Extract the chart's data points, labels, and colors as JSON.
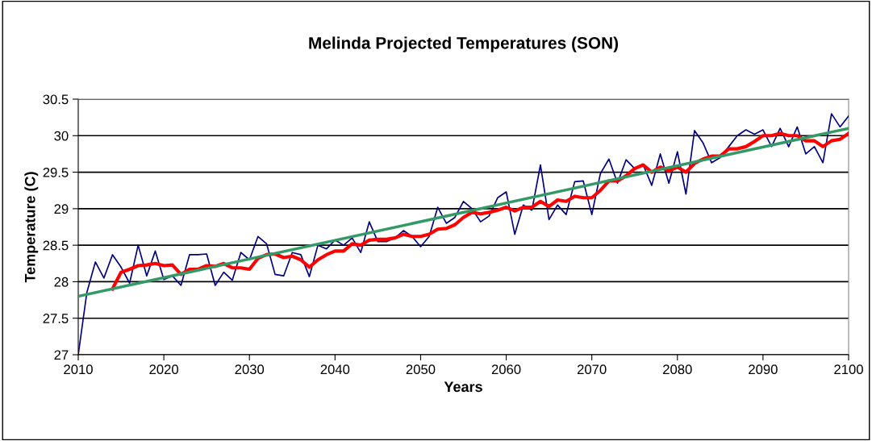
{
  "chart_data": {
    "type": "line",
    "title": "Melinda Projected Temperatures (SON)",
    "xlabel": "Years",
    "ylabel": "Temperature (C)",
    "x": [
      2010,
      2011,
      2012,
      2013,
      2014,
      2015,
      2016,
      2017,
      2018,
      2019,
      2020,
      2021,
      2022,
      2023,
      2024,
      2025,
      2026,
      2027,
      2028,
      2029,
      2030,
      2031,
      2032,
      2033,
      2034,
      2035,
      2036,
      2037,
      2038,
      2039,
      2040,
      2041,
      2042,
      2043,
      2044,
      2045,
      2046,
      2047,
      2048,
      2049,
      2050,
      2051,
      2052,
      2053,
      2054,
      2055,
      2056,
      2057,
      2058,
      2059,
      2060,
      2061,
      2062,
      2063,
      2064,
      2065,
      2066,
      2067,
      2068,
      2069,
      2070,
      2071,
      2072,
      2073,
      2074,
      2075,
      2076,
      2077,
      2078,
      2079,
      2080,
      2081,
      2082,
      2083,
      2084,
      2085,
      2086,
      2087,
      2088,
      2089,
      2090,
      2091,
      2092,
      2093,
      2094,
      2095,
      2096,
      2097,
      2098,
      2099,
      2100
    ],
    "series": [
      {
        "color": "#000080",
        "values": [
          27.0,
          27.85,
          28.27,
          28.05,
          28.37,
          28.2,
          27.98,
          28.5,
          28.08,
          28.42,
          28.03,
          28.08,
          27.95,
          28.37,
          28.37,
          28.38,
          27.95,
          28.13,
          28.02,
          28.4,
          28.3,
          28.62,
          28.52,
          28.1,
          28.08,
          28.4,
          28.37,
          28.07,
          28.5,
          28.45,
          28.57,
          28.5,
          28.6,
          28.4,
          28.82,
          28.55,
          28.55,
          28.6,
          28.7,
          28.62,
          28.48,
          28.62,
          29.02,
          28.8,
          28.88,
          29.1,
          29.0,
          28.82,
          28.9,
          29.15,
          29.23,
          28.65,
          29.05,
          28.98,
          29.6,
          28.85,
          29.05,
          28.92,
          29.37,
          29.38,
          28.92,
          29.48,
          29.68,
          29.35,
          29.67,
          29.55,
          29.6,
          29.32,
          29.75,
          29.35,
          29.78,
          29.2,
          30.07,
          29.9,
          29.63,
          29.7,
          29.85,
          30.0,
          30.08,
          30.02,
          30.08,
          29.85,
          30.1,
          29.85,
          30.12,
          29.75,
          29.85,
          29.63,
          30.3,
          30.12,
          30.27
        ]
      },
      {
        "color": "#ff0000",
        "values": [
          null,
          null,
          null,
          null,
          27.9,
          28.13,
          28.17,
          28.22,
          28.23,
          28.25,
          28.22,
          28.23,
          28.1,
          28.17,
          28.17,
          28.22,
          28.21,
          28.25,
          28.19,
          28.19,
          28.17,
          28.32,
          28.37,
          28.38,
          28.33,
          28.35,
          28.3,
          28.2,
          28.3,
          28.37,
          28.42,
          28.42,
          28.52,
          28.5,
          28.57,
          28.58,
          28.58,
          28.6,
          28.65,
          28.62,
          28.62,
          28.65,
          28.72,
          28.73,
          28.78,
          28.88,
          28.95,
          28.93,
          28.95,
          28.98,
          29.02,
          28.97,
          29.02,
          29.02,
          29.1,
          29.03,
          29.12,
          29.1,
          29.17,
          29.15,
          29.15,
          29.25,
          29.38,
          29.38,
          29.45,
          29.55,
          29.6,
          29.5,
          29.57,
          29.52,
          29.57,
          29.5,
          29.62,
          29.68,
          29.72,
          29.72,
          29.82,
          29.82,
          29.85,
          29.92,
          30.0,
          30.0,
          30.03,
          30.0,
          30.0,
          29.93,
          29.93,
          29.85,
          29.93,
          29.95,
          30.03
        ]
      },
      {
        "type": "line",
        "color": "#339966",
        "x": [
          2010,
          2100
        ],
        "values": [
          27.8,
          30.1
        ]
      }
    ],
    "xlim": [
      2010,
      2100
    ],
    "xticks": [
      2010,
      2020,
      2030,
      2040,
      2050,
      2060,
      2070,
      2080,
      2090,
      2100
    ],
    "ylim": [
      27,
      30.5
    ],
    "yticks": [
      27,
      27.5,
      28,
      28.5,
      29,
      29.5,
      30,
      30.5
    ],
    "grid": "y",
    "line_style": "solid",
    "marker": "none"
  }
}
